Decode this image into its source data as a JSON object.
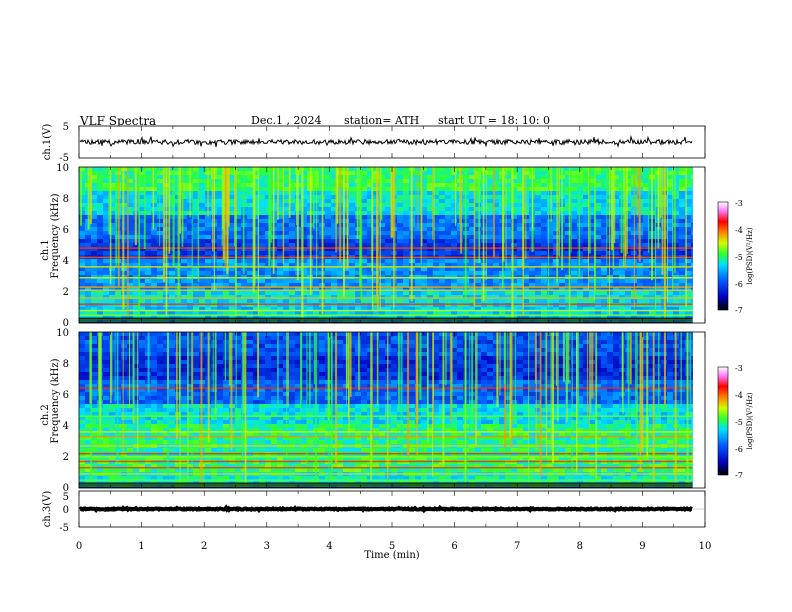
{
  "header": {
    "title": "VLF Spectra",
    "date": "Dec.1 , 2024",
    "station": "station= ATH",
    "start": "start UT = 18: 10: 0"
  },
  "chart_data": {
    "type": "heatmap",
    "x_axis": {
      "label": "Time (min)",
      "range": [
        0,
        10
      ],
      "ticks": [
        "0",
        "1",
        "2",
        "3",
        "4",
        "5",
        "6",
        "7",
        "8",
        "9",
        "10"
      ]
    },
    "data_end_min": 9.8,
    "panels": [
      {
        "id": "ch1_waveform",
        "type": "line",
        "ylabel": "ch.1(V)",
        "ylim": [
          -5,
          5
        ],
        "ticks": [
          "5",
          "-5"
        ],
        "mean": 0,
        "amplitude": 1.5
      },
      {
        "id": "ch1_spectrogram",
        "type": "heatmap",
        "ylabel_top": "ch.1",
        "ylabel": "Frequency (kHz)",
        "ylim": [
          0,
          10
        ],
        "ticks": [
          "0",
          "2",
          "4",
          "6",
          "8",
          "10"
        ],
        "colorbar": {
          "label": "log(PSD)(V²/Hz)",
          "range": [
            -7,
            -3
          ],
          "ticks": [
            "-3",
            "-4",
            "-5",
            "-6",
            "-7"
          ]
        }
      },
      {
        "id": "ch2_spectrogram",
        "type": "heatmap",
        "ylabel_top": "ch.2",
        "ylabel": "Frequency (kHz)",
        "ylim": [
          0,
          10
        ],
        "ticks": [
          "0",
          "2",
          "4",
          "6",
          "8",
          "10"
        ],
        "colorbar": {
          "label": "log(PSD)(V²/Hz)",
          "range": [
            -7,
            -3
          ],
          "ticks": [
            "-3",
            "-4",
            "-5",
            "-6",
            "-7"
          ]
        }
      },
      {
        "id": "ch3_waveform",
        "type": "line",
        "ylabel": "ch.3(V)",
        "ylim": [
          -5,
          5
        ],
        "ticks": [
          "5",
          "0",
          "-5"
        ],
        "mean": 0,
        "amplitude": 0.3
      }
    ],
    "colors": {
      "scale": [
        "#000000",
        "#0000c0",
        "#0040ff",
        "#00b0ff",
        "#00ffd0",
        "#30ff30",
        "#d0ff00",
        "#ffd000",
        "#ff4000",
        "#ff80ff",
        "#ffffff"
      ]
    }
  }
}
